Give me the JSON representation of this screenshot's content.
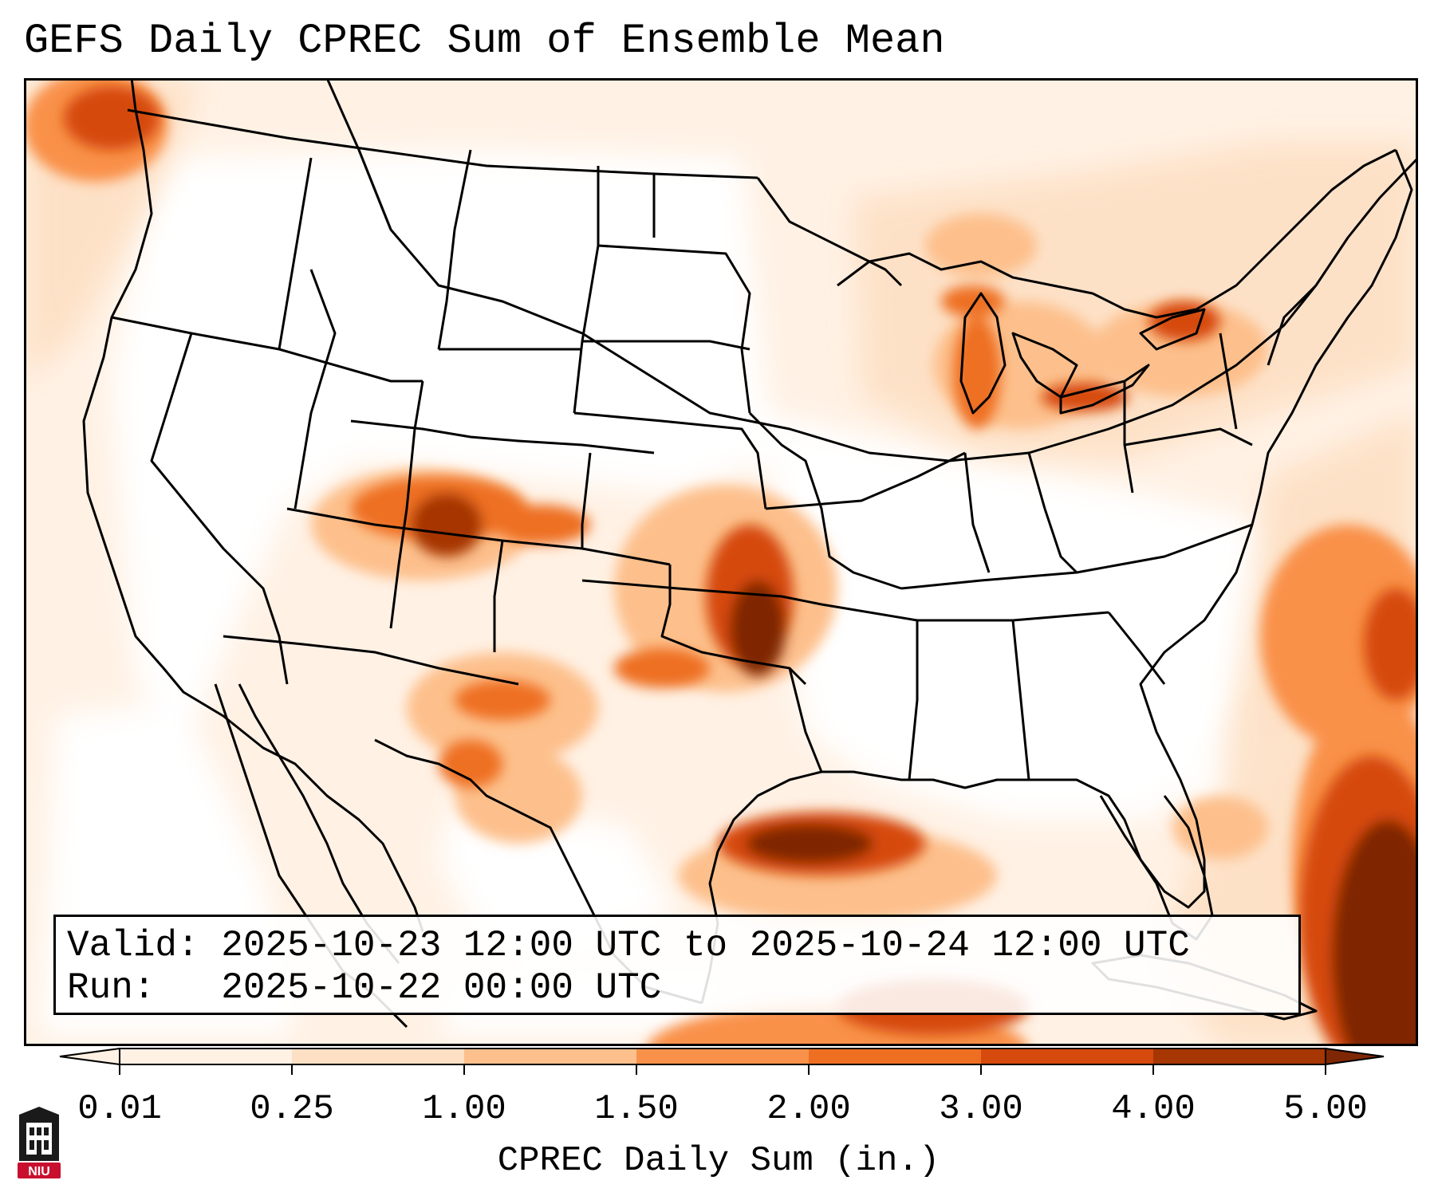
{
  "title": "GEFS Daily CPREC Sum of Ensemble Mean",
  "info": {
    "valid_label": "Valid:",
    "valid_value": "2025-10-23 12:00 UTC to 2025-10-24 12:00 UTC",
    "run_label": "Run:",
    "run_value": "2025-10-22 00:00 UTC"
  },
  "colorbar": {
    "label": "CPREC Daily Sum (in.)",
    "ticks": [
      "0.01",
      "0.25",
      "1.00",
      "1.50",
      "2.00",
      "3.00",
      "4.00",
      "5.00"
    ],
    "colors": [
      "#fff1e4",
      "#fde0c4",
      "#fdc08c",
      "#f9914a",
      "#ee6f22",
      "#d64a0d",
      "#a63603",
      "#7f2704"
    ]
  },
  "logo": {
    "text": "NIU",
    "color": "#c8102e"
  },
  "chart_data": {
    "type": "heatmap",
    "title": "GEFS Daily CPREC Sum of Ensemble Mean",
    "variable": "CPREC Daily Sum",
    "units": "in.",
    "levels": [
      0.01,
      0.25,
      1.0,
      1.5,
      2.0,
      3.0,
      4.0,
      5.0
    ],
    "extend": "both",
    "notable_maxima": [
      {
        "region": "Western Colorado / Four Corners",
        "approx_max_in": 4.0
      },
      {
        "region": "Central Oklahoma",
        "approx_max_in": 5.0
      },
      {
        "region": "Southeast Texas coast / NW Gulf of Mexico",
        "approx_max_in": 5.0
      },
      {
        "region": "Western Atlantic east of Florida / Bahamas",
        "approx_max_in": 5.0
      },
      {
        "region": "Lower Michigan / Lake Erie / Lake Ontario",
        "approx_max_in": 3.0
      },
      {
        "region": "Pacific Northwest coast",
        "approx_max_in": 3.0
      }
    ]
  }
}
